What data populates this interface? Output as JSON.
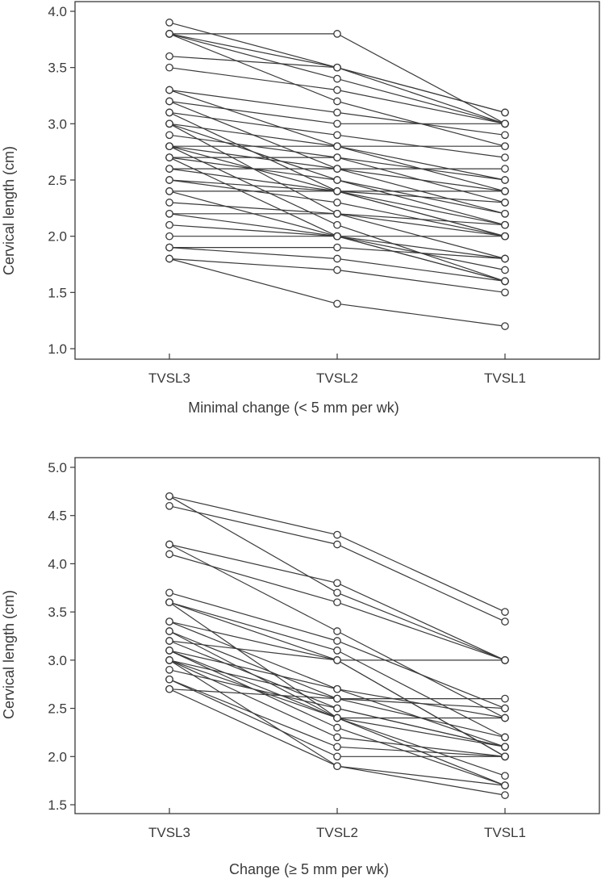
{
  "chart_data": [
    {
      "type": "line",
      "xlabel": "Minimal change (< 5 mm per wk)",
      "ylabel": "Cervical length (cm)",
      "categories": [
        "TVSL3",
        "TVSL2",
        "TVSL1"
      ],
      "ylim": [
        0.9,
        4.05
      ],
      "yticks": [
        "1.0",
        "1.5",
        "2.0",
        "2.5",
        "3.0",
        "3.5",
        "4.0"
      ],
      "grid": false,
      "series": [
        {
          "values": [
            3.9,
            3.5,
            3.0
          ]
        },
        {
          "values": [
            3.8,
            3.8,
            3.0
          ]
        },
        {
          "values": [
            3.8,
            3.5,
            3.1
          ]
        },
        {
          "values": [
            3.8,
            3.4,
            3.0
          ]
        },
        {
          "values": [
            3.8,
            3.2,
            2.8
          ]
        },
        {
          "values": [
            3.6,
            3.5,
            3.1
          ]
        },
        {
          "values": [
            3.5,
            3.3,
            3.0
          ]
        },
        {
          "values": [
            3.3,
            3.1,
            2.9
          ]
        },
        {
          "values": [
            3.3,
            2.8,
            2.4
          ]
        },
        {
          "values": [
            3.2,
            3.0,
            3.0
          ]
        },
        {
          "values": [
            3.2,
            2.6,
            2.2
          ]
        },
        {
          "values": [
            3.1,
            2.9,
            2.7
          ]
        },
        {
          "values": [
            3.1,
            2.4,
            2.0
          ]
        },
        {
          "values": [
            3.0,
            2.8,
            2.5
          ]
        },
        {
          "values": [
            3.0,
            2.5,
            2.1
          ]
        },
        {
          "values": [
            3.0,
            2.2,
            1.8
          ]
        },
        {
          "values": [
            2.9,
            2.7,
            2.5
          ]
        },
        {
          "values": [
            2.8,
            2.8,
            2.8
          ]
        },
        {
          "values": [
            2.8,
            2.6,
            2.4
          ]
        },
        {
          "values": [
            2.8,
            2.4,
            2.0
          ]
        },
        {
          "values": [
            2.8,
            2.1,
            1.6
          ]
        },
        {
          "values": [
            2.7,
            2.7,
            2.3
          ]
        },
        {
          "values": [
            2.7,
            2.5,
            2.2
          ]
        },
        {
          "values": [
            2.7,
            2.0,
            1.6
          ]
        },
        {
          "values": [
            2.6,
            2.6,
            2.6
          ]
        },
        {
          "values": [
            2.6,
            2.4,
            2.1
          ]
        },
        {
          "values": [
            2.5,
            2.4,
            2.3
          ]
        },
        {
          "values": [
            2.5,
            2.3,
            2.0
          ]
        },
        {
          "values": [
            2.4,
            2.4,
            2.4
          ]
        },
        {
          "values": [
            2.4,
            2.0,
            1.7
          ]
        },
        {
          "values": [
            2.3,
            2.2,
            2.1
          ]
        },
        {
          "values": [
            2.2,
            2.2,
            2.0
          ]
        },
        {
          "values": [
            2.2,
            2.0,
            1.6
          ]
        },
        {
          "values": [
            2.1,
            2.0,
            1.8
          ]
        },
        {
          "values": [
            2.0,
            2.0,
            2.0
          ]
        },
        {
          "values": [
            1.9,
            1.9,
            1.8
          ]
        },
        {
          "values": [
            1.9,
            1.8,
            1.6
          ]
        },
        {
          "values": [
            1.8,
            1.7,
            1.5
          ]
        },
        {
          "values": [
            1.8,
            1.4,
            1.2
          ]
        }
      ]
    },
    {
      "type": "line",
      "xlabel": "Change (≥ 5 mm per wk)",
      "ylabel": "Cervical length (cm)",
      "categories": [
        "TVSL3",
        "TVSL2",
        "TVSL1"
      ],
      "ylim": [
        1.4,
        5.05
      ],
      "yticks": [
        "1.5",
        "2.0",
        "2.5",
        "3.0",
        "3.5",
        "4.0",
        "4.5",
        "5.0"
      ],
      "grid": false,
      "series": [
        {
          "values": [
            4.7,
            4.3,
            3.5
          ]
        },
        {
          "values": [
            4.7,
            3.7,
            3.0
          ]
        },
        {
          "values": [
            4.6,
            4.2,
            3.4
          ]
        },
        {
          "values": [
            4.2,
            3.8,
            3.0
          ]
        },
        {
          "values": [
            4.2,
            3.3,
            2.4
          ]
        },
        {
          "values": [
            4.1,
            3.6,
            3.0
          ]
        },
        {
          "values": [
            3.7,
            3.2,
            2.5
          ]
        },
        {
          "values": [
            3.6,
            3.1,
            2.2
          ]
        },
        {
          "values": [
            3.6,
            3.0,
            2.0
          ]
        },
        {
          "values": [
            3.6,
            2.4,
            1.7
          ]
        },
        {
          "values": [
            3.4,
            3.0,
            3.0
          ]
        },
        {
          "values": [
            3.4,
            2.7,
            2.1
          ]
        },
        {
          "values": [
            3.3,
            2.6,
            2.2
          ]
        },
        {
          "values": [
            3.3,
            2.4,
            1.8
          ]
        },
        {
          "values": [
            3.2,
            3.0,
            2.0
          ]
        },
        {
          "values": [
            3.2,
            2.5,
            2.1
          ]
        },
        {
          "values": [
            3.1,
            2.7,
            2.4
          ]
        },
        {
          "values": [
            3.1,
            2.4,
            2.1
          ]
        },
        {
          "values": [
            3.1,
            2.3,
            1.7
          ]
        },
        {
          "values": [
            3.0,
            2.6,
            2.6
          ]
        },
        {
          "values": [
            3.0,
            2.4,
            2.4
          ]
        },
        {
          "values": [
            3.0,
            2.2,
            2.0
          ]
        },
        {
          "values": [
            3.0,
            1.9,
            1.6
          ]
        },
        {
          "values": [
            2.9,
            2.5,
            2.1
          ]
        },
        {
          "values": [
            2.8,
            2.1,
            2.0
          ]
        },
        {
          "values": [
            2.8,
            2.0,
            2.0
          ]
        },
        {
          "values": [
            2.7,
            2.6,
            2.5
          ]
        },
        {
          "values": [
            2.7,
            1.9,
            1.7
          ]
        }
      ]
    }
  ]
}
